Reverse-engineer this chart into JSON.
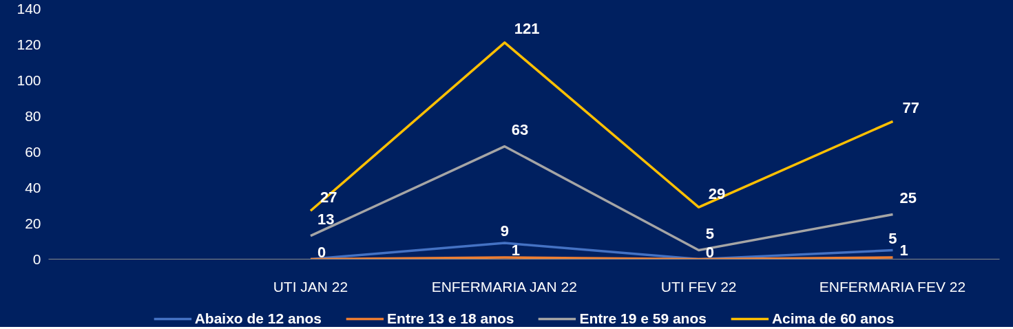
{
  "chart_data": {
    "type": "line",
    "categories": [
      "UTI JAN 22",
      "ENFERMARIA JAN 22",
      "UTI FEV 22",
      "ENFERMARIA FEV 22"
    ],
    "series": [
      {
        "name": "Abaixo de 12 anos",
        "color": "#4472c4",
        "values": [
          0,
          9,
          0,
          5
        ],
        "value_labels": [
          null,
          "9",
          null,
          "5"
        ]
      },
      {
        "name": "Entre 13 e 18 anos",
        "color": "#ed7d31",
        "values": [
          0,
          1,
          0,
          1
        ],
        "value_labels": [
          "0",
          "1",
          "0",
          "1"
        ]
      },
      {
        "name": "Entre 19 e 59 anos",
        "color": "#a5a5a5",
        "values": [
          13,
          63,
          5,
          25
        ],
        "value_labels": [
          "13",
          "63",
          "5",
          "25"
        ]
      },
      {
        "name": "Acima de 60 anos",
        "color": "#ffc000",
        "values": [
          27,
          121,
          29,
          77
        ],
        "value_labels": [
          "27",
          "121",
          "29",
          "77"
        ]
      }
    ],
    "ylim": [
      0,
      140
    ],
    "yticks": [
      0,
      20,
      40,
      60,
      80,
      100,
      120,
      140
    ],
    "grid": false,
    "legend": "bottom",
    "marker": "none",
    "line_style": "solid"
  }
}
